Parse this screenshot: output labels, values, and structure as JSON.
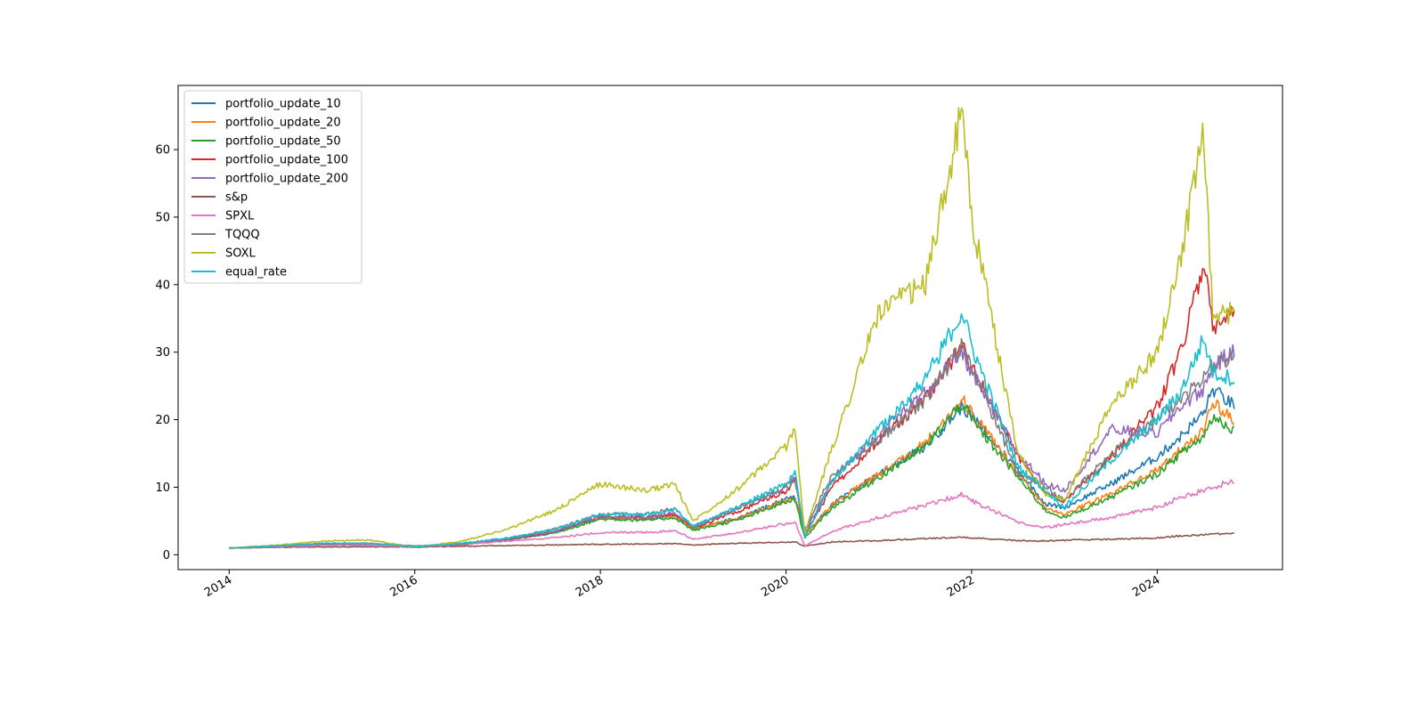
{
  "chart_data": {
    "type": "line",
    "title": "",
    "xlabel": "",
    "ylabel": "",
    "xlim": [
      2013.45,
      2025.35
    ],
    "ylim": [
      -2.2,
      69.5
    ],
    "x_ticks": [
      2014,
      2016,
      2018,
      2020,
      2022,
      2024
    ],
    "x_tick_labels": [
      "2014",
      "2016",
      "2018",
      "2020",
      "2022",
      "2024"
    ],
    "y_ticks": [
      0,
      10,
      20,
      30,
      40,
      50,
      60
    ],
    "y_tick_labels": [
      "0",
      "10",
      "20",
      "30",
      "40",
      "50",
      "60"
    ],
    "grid": false,
    "legend_position": "upper-left",
    "x": [
      2014.0,
      2014.5,
      2015.0,
      2015.5,
      2016.0,
      2016.5,
      2017.0,
      2017.5,
      2018.0,
      2018.5,
      2018.8,
      2019.0,
      2019.5,
      2020.0,
      2020.1,
      2020.2,
      2020.5,
      2021.0,
      2021.5,
      2021.9,
      2022.0,
      2022.5,
      2022.8,
      2023.0,
      2023.5,
      2024.0,
      2024.25,
      2024.5,
      2024.6,
      2024.83
    ],
    "series": [
      {
        "name": "portfolio_update_10",
        "color": "#1f77b4",
        "values": [
          1.0,
          1.2,
          1.5,
          1.5,
          1.1,
          1.5,
          2.2,
          3.3,
          5.5,
          5.3,
          5.8,
          3.8,
          5.5,
          8.2,
          8.5,
          2.8,
          7.5,
          12.0,
          16.0,
          22.0,
          20.5,
          12.5,
          7.5,
          7.0,
          10.5,
          14.5,
          17.5,
          21.0,
          24.5,
          22.0
        ]
      },
      {
        "name": "portfolio_update_20",
        "color": "#ff7f0e",
        "values": [
          1.0,
          1.2,
          1.5,
          1.5,
          1.1,
          1.5,
          2.2,
          3.3,
          5.5,
          5.3,
          5.8,
          3.8,
          5.5,
          8.0,
          8.5,
          2.8,
          7.5,
          12.0,
          16.5,
          23.0,
          21.0,
          12.0,
          7.0,
          6.0,
          9.0,
          12.5,
          15.5,
          18.5,
          22.5,
          20.0
        ]
      },
      {
        "name": "portfolio_update_50",
        "color": "#2ca02c",
        "values": [
          1.0,
          1.2,
          1.5,
          1.5,
          1.1,
          1.5,
          2.2,
          3.2,
          5.3,
          5.1,
          5.5,
          3.6,
          5.2,
          7.8,
          8.2,
          2.5,
          7.0,
          11.5,
          16.0,
          22.5,
          20.0,
          11.5,
          6.5,
          5.5,
          8.5,
          12.0,
          15.0,
          17.5,
          20.5,
          18.5
        ]
      },
      {
        "name": "portfolio_update_100",
        "color": "#d62728",
        "values": [
          1.0,
          1.2,
          1.5,
          1.5,
          1.1,
          1.5,
          2.3,
          3.4,
          5.7,
          5.5,
          6.0,
          4.0,
          6.5,
          9.5,
          11.0,
          3.0,
          10.0,
          17.0,
          23.0,
          31.0,
          28.0,
          14.5,
          9.0,
          8.0,
          14.5,
          22.0,
          30.0,
          43.5,
          34.0,
          35.5
        ]
      },
      {
        "name": "portfolio_update_200",
        "color": "#9467bd",
        "values": [
          1.0,
          1.2,
          1.5,
          1.5,
          1.1,
          1.5,
          2.3,
          3.4,
          5.7,
          5.6,
          6.2,
          4.2,
          7.0,
          10.0,
          11.5,
          3.2,
          11.0,
          18.0,
          24.0,
          30.0,
          27.0,
          15.0,
          10.5,
          9.5,
          18.5,
          18.0,
          22.0,
          24.5,
          28.0,
          30.0
        ]
      },
      {
        "name": "s&p",
        "color": "#8c564b",
        "values": [
          1.0,
          1.1,
          1.15,
          1.2,
          1.15,
          1.25,
          1.35,
          1.45,
          1.55,
          1.6,
          1.65,
          1.45,
          1.7,
          1.85,
          1.9,
          1.3,
          1.9,
          2.1,
          2.4,
          2.6,
          2.5,
          2.1,
          2.05,
          2.15,
          2.3,
          2.5,
          2.8,
          2.95,
          3.0,
          3.2
        ]
      },
      {
        "name": "SPXL",
        "color": "#e377c2",
        "values": [
          1.0,
          1.2,
          1.4,
          1.4,
          1.2,
          1.5,
          2.0,
          2.5,
          3.3,
          3.3,
          3.6,
          2.3,
          3.3,
          4.6,
          4.8,
          1.3,
          3.5,
          5.5,
          7.3,
          9.0,
          8.0,
          4.8,
          4.0,
          4.5,
          5.5,
          7.0,
          8.5,
          9.5,
          10.0,
          11.0
        ]
      },
      {
        "name": "TQQQ",
        "color": "#7f7f7f",
        "values": [
          1.0,
          1.25,
          1.6,
          1.7,
          1.3,
          1.6,
          2.4,
          3.8,
          6.0,
          6.0,
          6.8,
          4.0,
          7.0,
          10.0,
          11.0,
          3.5,
          12.0,
          17.0,
          23.0,
          31.0,
          28.0,
          12.0,
          10.0,
          8.0,
          15.0,
          20.0,
          23.0,
          26.0,
          28.0,
          29.0
        ]
      },
      {
        "name": "SOXL",
        "color": "#bcbd22",
        "values": [
          1.0,
          1.4,
          2.0,
          2.2,
          1.1,
          2.0,
          3.8,
          6.5,
          10.5,
          9.5,
          10.5,
          5.0,
          10.0,
          16.0,
          19.0,
          3.0,
          16.0,
          36.0,
          40.0,
          66.0,
          50.0,
          15.0,
          9.0,
          8.0,
          22.0,
          30.0,
          44.0,
          62.0,
          35.0,
          36.0
        ]
      },
      {
        "name": "equal_rate",
        "color": "#17becf",
        "values": [
          1.0,
          1.3,
          1.7,
          1.7,
          1.2,
          1.7,
          2.5,
          3.7,
          6.0,
          6.0,
          6.7,
          4.2,
          7.2,
          10.5,
          12.0,
          2.5,
          11.0,
          18.5,
          26.0,
          36.0,
          31.0,
          13.0,
          9.5,
          7.0,
          14.0,
          20.0,
          24.0,
          32.0,
          27.0,
          26.0
        ]
      }
    ]
  }
}
